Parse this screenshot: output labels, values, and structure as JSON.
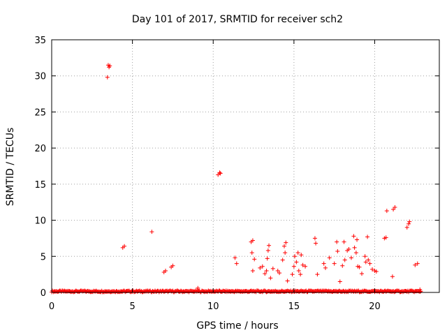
{
  "chart_data": {
    "type": "scatter",
    "title": "Day 101 of 2017, SRMTID for receiver sch2",
    "xlabel": "GPS time / hours",
    "ylabel": "SRMTID / TECUs",
    "xlim": [
      0,
      24
    ],
    "ylim": [
      0,
      35
    ],
    "xticks": [
      0,
      5,
      10,
      15,
      20
    ],
    "yticks": [
      0,
      5,
      10,
      15,
      20,
      25,
      30,
      35
    ],
    "grid": true,
    "marker": "plus",
    "colors": {
      "points": "#ff0000",
      "grid": "#a0a0a0",
      "axis": "#000000"
    },
    "series": [
      {
        "name": "SRMTID",
        "points": [
          [
            3.45,
            29.8
          ],
          [
            3.5,
            31.5
          ],
          [
            3.55,
            31.2
          ],
          [
            3.6,
            31.4
          ],
          [
            4.4,
            6.2
          ],
          [
            4.5,
            6.4
          ],
          [
            6.2,
            8.4
          ],
          [
            6.95,
            2.8
          ],
          [
            7.05,
            3.0
          ],
          [
            7.4,
            3.5
          ],
          [
            7.5,
            3.7
          ],
          [
            9.05,
            0.6
          ],
          [
            10.3,
            16.3
          ],
          [
            10.4,
            16.6
          ],
          [
            10.45,
            16.5
          ],
          [
            11.35,
            4.8
          ],
          [
            11.45,
            4.0
          ],
          [
            12.35,
            7.0
          ],
          [
            12.45,
            7.2
          ],
          [
            12.4,
            5.5
          ],
          [
            12.55,
            4.6
          ],
          [
            12.45,
            3.0
          ],
          [
            12.9,
            3.4
          ],
          [
            13.05,
            3.6
          ],
          [
            13.2,
            2.6
          ],
          [
            13.3,
            3.0
          ],
          [
            13.35,
            4.7
          ],
          [
            13.4,
            5.8
          ],
          [
            13.45,
            6.5
          ],
          [
            13.55,
            2.0
          ],
          [
            13.7,
            3.3
          ],
          [
            14.0,
            3.0
          ],
          [
            14.1,
            2.7
          ],
          [
            14.3,
            4.5
          ],
          [
            14.4,
            6.4
          ],
          [
            14.45,
            5.5
          ],
          [
            14.5,
            6.9
          ],
          [
            14.6,
            1.6
          ],
          [
            14.9,
            2.5
          ],
          [
            15.0,
            3.6
          ],
          [
            15.05,
            5.0
          ],
          [
            15.15,
            4.2
          ],
          [
            15.25,
            5.5
          ],
          [
            15.3,
            3.0
          ],
          [
            15.4,
            2.5
          ],
          [
            15.45,
            5.2
          ],
          [
            15.55,
            3.8
          ],
          [
            15.7,
            3.6
          ],
          [
            16.3,
            7.5
          ],
          [
            16.35,
            6.8
          ],
          [
            16.45,
            2.5
          ],
          [
            16.85,
            4.0
          ],
          [
            16.95,
            3.4
          ],
          [
            17.2,
            4.8
          ],
          [
            17.5,
            4.0
          ],
          [
            17.65,
            7.0
          ],
          [
            17.7,
            5.7
          ],
          [
            17.85,
            1.5
          ],
          [
            18.0,
            3.7
          ],
          [
            18.1,
            7.0
          ],
          [
            18.15,
            4.5
          ],
          [
            18.3,
            5.8
          ],
          [
            18.4,
            6.0
          ],
          [
            18.55,
            4.8
          ],
          [
            18.7,
            7.8
          ],
          [
            18.75,
            6.2
          ],
          [
            18.85,
            5.5
          ],
          [
            18.9,
            7.3
          ],
          [
            18.95,
            3.6
          ],
          [
            19.05,
            3.5
          ],
          [
            19.2,
            2.6
          ],
          [
            19.4,
            5.0
          ],
          [
            19.45,
            4.2
          ],
          [
            19.55,
            7.7
          ],
          [
            19.6,
            4.5
          ],
          [
            19.7,
            4.0
          ],
          [
            19.85,
            3.2
          ],
          [
            20.0,
            3.0
          ],
          [
            20.1,
            2.9
          ],
          [
            20.6,
            7.5
          ],
          [
            20.7,
            7.6
          ],
          [
            20.75,
            11.3
          ],
          [
            21.1,
            2.2
          ],
          [
            21.15,
            11.5
          ],
          [
            21.25,
            11.8
          ],
          [
            22.0,
            9.0
          ],
          [
            22.1,
            9.5
          ],
          [
            22.15,
            9.8
          ],
          [
            22.5,
            3.8
          ],
          [
            22.65,
            4.0
          ],
          [
            22.8,
            0.4
          ]
        ],
        "baseline": {
          "from": 0.0,
          "to": 22.9,
          "step": 0.05,
          "level": 0.05,
          "amplitude": 0.2
        }
      }
    ]
  }
}
